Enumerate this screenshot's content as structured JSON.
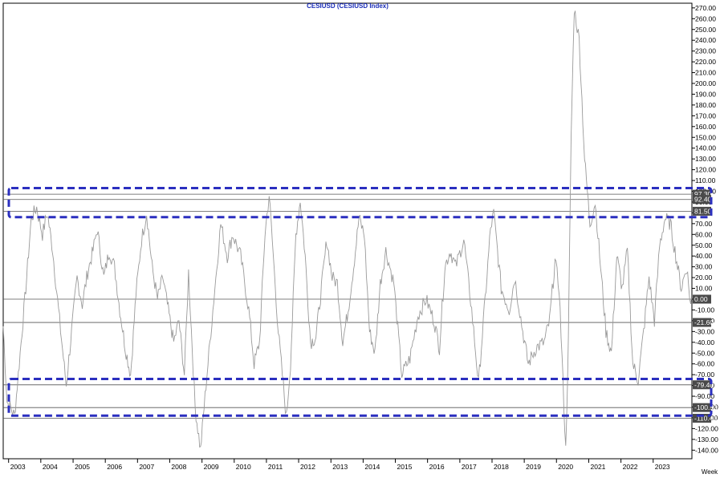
{
  "title": "CESIUSD  (CESIUSD Index)",
  "period_label": "Week",
  "colors": {
    "series": "#9a9a9a",
    "level_line": "#555555",
    "badge_bg": "#4a4a4a",
    "highlight_box": "#2b2fbf",
    "axis": "#000000",
    "title": "#1a2db8"
  },
  "chart_data": {
    "type": "line",
    "x_range": [
      "2002-11-01",
      "2024-03-15"
    ],
    "ylim": [
      -148,
      272
    ],
    "y_ticks": [
      270,
      260,
      250,
      240,
      230,
      220,
      210,
      200,
      190,
      180,
      170,
      160,
      150,
      140,
      130,
      120,
      110,
      100,
      90,
      80,
      70,
      60,
      50,
      40,
      30,
      20,
      10,
      0,
      -10,
      -20,
      -30,
      -40,
      -50,
      -60,
      -70,
      -80,
      -90,
      -100,
      -110,
      -120,
      -130,
      -140
    ],
    "y_tick_labels": [
      "270.00",
      "260.00",
      "250.00",
      "240.00",
      "230.00",
      "220.00",
      "210.00",
      "200.00",
      "190.00",
      "180.00",
      "170.00",
      "160.00",
      "150.00",
      "140.00",
      "130.00",
      "120.00",
      "110.00",
      "100.00",
      "90.00",
      "80.00",
      "70.00",
      "60.00",
      "50.00",
      "40.00",
      "30.00",
      "20.00",
      "10.00",
      "0.00",
      "-10.00",
      "-20.00",
      "-30.00",
      "-40.00",
      "-50.00",
      "-60.00",
      "-70.00",
      "-80.00",
      "-90.00",
      "-100.00",
      "-110.00",
      "-120.00",
      "-130.00",
      "-140.00"
    ],
    "x_ticks": [
      "2003",
      "2004",
      "2005",
      "2006",
      "2007",
      "2008",
      "2009",
      "2010",
      "2011",
      "2012",
      "2013",
      "2014",
      "2015",
      "2016",
      "2017",
      "2018",
      "2019",
      "2020",
      "2021",
      "2022",
      "2023"
    ],
    "horizontal_levels": [
      {
        "value": 97.3,
        "label": "97.30"
      },
      {
        "value": 92.4,
        "label": "92.40"
      },
      {
        "value": 81.5,
        "label": "81.50"
      },
      {
        "value": -21.6,
        "label": "-21.60"
      },
      {
        "value": -79.4,
        "label": "-79.40"
      },
      {
        "value": -100.5,
        "label": "-100.50"
      },
      {
        "value": -110.4,
        "label": "-110.40"
      }
    ],
    "last_value": {
      "value": 0.0,
      "label": "0.00"
    },
    "highlight_zones": [
      {
        "y_min": 76,
        "y_max": 103
      },
      {
        "y_min": -108,
        "y_max": -74
      }
    ],
    "series": [
      {
        "values": [
          [
            "2002-11-01",
            -25
          ],
          [
            "2002-12-15",
            -95
          ],
          [
            "2003-03-10",
            -108
          ],
          [
            "2003-05-01",
            -60
          ],
          [
            "2003-07-15",
            10
          ],
          [
            "2003-09-15",
            75
          ],
          [
            "2003-11-15",
            85
          ],
          [
            "2004-01-20",
            60
          ],
          [
            "2004-03-15",
            80
          ],
          [
            "2004-05-15",
            45
          ],
          [
            "2004-08-01",
            -20
          ],
          [
            "2004-10-15",
            -80
          ],
          [
            "2004-12-15",
            -30
          ],
          [
            "2005-02-15",
            20
          ],
          [
            "2005-04-15",
            -5
          ],
          [
            "2005-06-15",
            25
          ],
          [
            "2005-08-15",
            45
          ],
          [
            "2005-10-01",
            65
          ],
          [
            "2005-12-15",
            20
          ],
          [
            "2006-02-15",
            45
          ],
          [
            "2006-04-15",
            30
          ],
          [
            "2006-06-15",
            -10
          ],
          [
            "2006-08-15",
            -45
          ],
          [
            "2006-10-15",
            -70
          ],
          [
            "2006-12-15",
            5
          ],
          [
            "2007-02-15",
            55
          ],
          [
            "2007-04-15",
            80
          ],
          [
            "2007-06-15",
            30
          ],
          [
            "2007-08-15",
            0
          ],
          [
            "2007-10-15",
            20
          ],
          [
            "2007-12-15",
            -10
          ],
          [
            "2008-02-15",
            -40
          ],
          [
            "2008-04-15",
            -20
          ],
          [
            "2008-06-15",
            -70
          ],
          [
            "2008-08-01",
            25
          ],
          [
            "2008-10-15",
            -100
          ],
          [
            "2008-12-15",
            -140
          ],
          [
            "2009-02-15",
            -80
          ],
          [
            "2009-05-15",
            0
          ],
          [
            "2009-08-01",
            70
          ],
          [
            "2009-10-15",
            40
          ],
          [
            "2009-12-15",
            60
          ],
          [
            "2010-03-15",
            40
          ],
          [
            "2010-06-15",
            -10
          ],
          [
            "2010-08-15",
            -60
          ],
          [
            "2010-10-15",
            -40
          ],
          [
            "2010-12-15",
            60
          ],
          [
            "2011-02-01",
            97
          ],
          [
            "2011-03-20",
            40
          ],
          [
            "2011-05-15",
            -30
          ],
          [
            "2011-08-15",
            -110
          ],
          [
            "2011-10-01",
            -60
          ],
          [
            "2011-12-01",
            60
          ],
          [
            "2012-01-20",
            92
          ],
          [
            "2012-03-15",
            40
          ],
          [
            "2012-05-15",
            -40
          ],
          [
            "2012-07-15",
            -35
          ],
          [
            "2012-09-15",
            10
          ],
          [
            "2012-11-15",
            55
          ],
          [
            "2013-01-15",
            20
          ],
          [
            "2013-03-15",
            15
          ],
          [
            "2013-05-15",
            -40
          ],
          [
            "2013-07-15",
            -10
          ],
          [
            "2013-09-15",
            30
          ],
          [
            "2013-11-15",
            75
          ],
          [
            "2014-01-15",
            60
          ],
          [
            "2014-03-15",
            -30
          ],
          [
            "2014-05-15",
            -50
          ],
          [
            "2014-07-15",
            15
          ],
          [
            "2014-09-15",
            45
          ],
          [
            "2014-12-15",
            15
          ],
          [
            "2015-03-15",
            -70
          ],
          [
            "2015-06-15",
            -55
          ],
          [
            "2015-09-15",
            -15
          ],
          [
            "2015-12-15",
            0
          ],
          [
            "2016-03-15",
            -20
          ],
          [
            "2016-05-15",
            -45
          ],
          [
            "2016-07-15",
            30
          ],
          [
            "2016-09-15",
            45
          ],
          [
            "2016-11-15",
            30
          ],
          [
            "2017-02-15",
            55
          ],
          [
            "2017-05-15",
            -10
          ],
          [
            "2017-08-01",
            -78
          ],
          [
            "2017-10-15",
            0
          ],
          [
            "2017-12-15",
            65
          ],
          [
            "2018-01-20",
            80
          ],
          [
            "2018-04-15",
            10
          ],
          [
            "2018-07-15",
            -10
          ],
          [
            "2018-09-15",
            20
          ],
          [
            "2018-12-15",
            -30
          ],
          [
            "2019-02-15",
            -60
          ],
          [
            "2019-05-15",
            -45
          ],
          [
            "2019-08-15",
            -40
          ],
          [
            "2019-10-15",
            -20
          ],
          [
            "2019-12-15",
            35
          ],
          [
            "2020-02-01",
            10
          ],
          [
            "2020-04-15",
            -140
          ],
          [
            "2020-05-15",
            -40
          ],
          [
            "2020-06-15",
            150
          ],
          [
            "2020-07-20",
            270
          ],
          [
            "2020-09-15",
            240
          ],
          [
            "2020-11-15",
            130
          ],
          [
            "2021-01-15",
            70
          ],
          [
            "2021-03-15",
            90
          ],
          [
            "2021-05-15",
            30
          ],
          [
            "2021-07-15",
            -30
          ],
          [
            "2021-09-15",
            -50
          ],
          [
            "2021-11-15",
            40
          ],
          [
            "2022-01-15",
            10
          ],
          [
            "2022-03-15",
            45
          ],
          [
            "2022-05-15",
            -60
          ],
          [
            "2022-07-15",
            -75
          ],
          [
            "2022-09-15",
            -30
          ],
          [
            "2022-11-15",
            20
          ],
          [
            "2023-01-15",
            -20
          ],
          [
            "2023-03-15",
            50
          ],
          [
            "2023-05-15",
            75
          ],
          [
            "2023-07-15",
            70
          ],
          [
            "2023-09-15",
            40
          ],
          [
            "2023-11-15",
            10
          ],
          [
            "2024-01-15",
            30
          ],
          [
            "2024-03-01",
            -5
          ],
          [
            "2024-03-15",
            0
          ]
        ]
      }
    ]
  }
}
